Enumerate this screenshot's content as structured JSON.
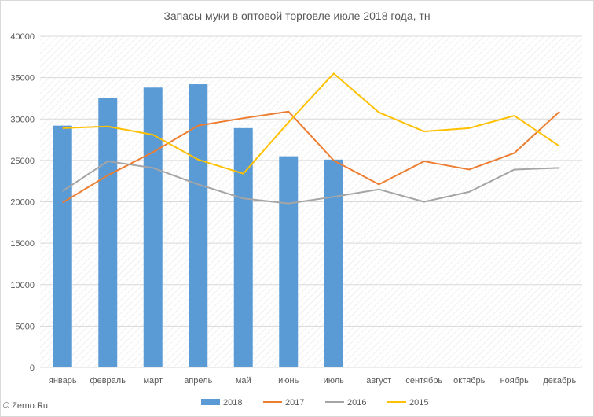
{
  "chart_data": {
    "type": "bar",
    "title": "Запасы муки в оптовой торговле июле 2018 года, тн",
    "xlabel": "",
    "ylabel": "",
    "categories": [
      "январь",
      "февраль",
      "март",
      "апрель",
      "май",
      "июнь",
      "июль",
      "август",
      "сентябрь",
      "октябрь",
      "ноябрь",
      "декабрь"
    ],
    "ylim": [
      0,
      40000
    ],
    "yticks": [
      0,
      5000,
      10000,
      15000,
      20000,
      25000,
      30000,
      35000,
      40000
    ],
    "grid": true,
    "legend_position": "bottom",
    "series": [
      {
        "name": "2018",
        "kind": "bar",
        "color": "#5b9bd5",
        "values": [
          29200,
          32500,
          33800,
          34200,
          28900,
          25500,
          25100,
          null,
          null,
          null,
          null,
          null
        ]
      },
      {
        "name": "2017",
        "kind": "line",
        "color": "#ed7d31",
        "values": [
          19900,
          23200,
          26000,
          29200,
          30100,
          30900,
          25000,
          22100,
          24900,
          23900,
          25900,
          30900
        ]
      },
      {
        "name": "2016",
        "kind": "line",
        "color": "#a5a5a5",
        "values": [
          21300,
          24900,
          24100,
          22100,
          20400,
          19800,
          20600,
          21500,
          20000,
          21200,
          23900,
          24100
        ]
      },
      {
        "name": "2015",
        "kind": "line",
        "color": "#ffc000",
        "values": [
          28900,
          29100,
          28100,
          25100,
          23400,
          29600,
          35500,
          30800,
          28500,
          28900,
          30400,
          26700
        ]
      }
    ]
  },
  "credit": "© Zerno.Ru"
}
